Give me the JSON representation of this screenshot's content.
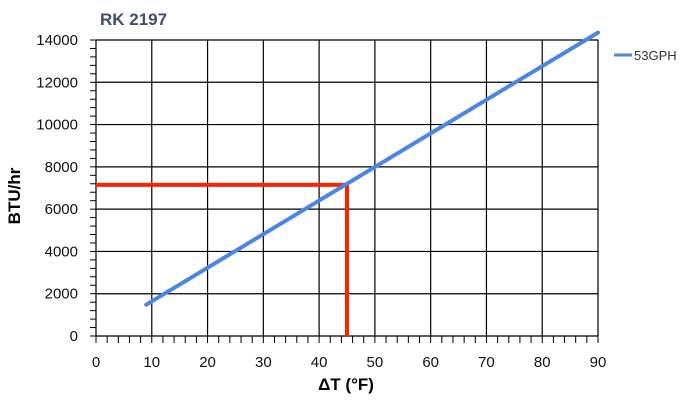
{
  "chart_data": {
    "type": "line",
    "title": "RK 2197",
    "xlabel": "ΔT (°F)",
    "ylabel": "BTU/hr",
    "xlim": [
      0,
      90
    ],
    "ylim": [
      0,
      14000
    ],
    "xticks": [
      0,
      10,
      20,
      30,
      40,
      50,
      60,
      70,
      80,
      90
    ],
    "yticks": [
      0,
      2000,
      4000,
      6000,
      8000,
      10000,
      12000,
      14000
    ],
    "grid": true,
    "legend_position": "top-right",
    "series": [
      {
        "name": "53GPH",
        "color": "#4a86e8",
        "x": [
          9,
          90
        ],
        "y": [
          1480,
          14350
        ]
      }
    ],
    "annotations": [
      {
        "type": "lookup",
        "color": "#ff2200",
        "x": 45,
        "y": 7150
      }
    ]
  }
}
